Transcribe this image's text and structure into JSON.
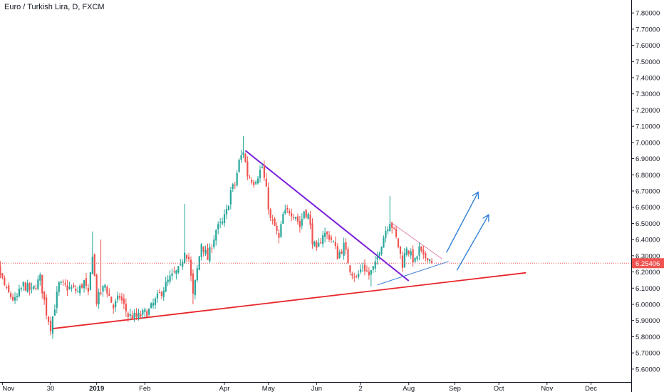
{
  "title": "Euro / Turkish Lira, D, FXCM",
  "colors": {
    "up": "#26a69a",
    "down": "#ef5350",
    "support": "#e8262b",
    "downtrend": "#7b1fd9",
    "pennant_lower": "#3b7fd4",
    "pennant_upper": "#d46aa0",
    "arrow": "#2f7fd6",
    "last_price": "#ef5350",
    "axis_text": "#131722",
    "axis_line": "#131722"
  },
  "chart_data": {
    "type": "candlestick",
    "symbol": "Euro / Turkish Lira, D, FXCM",
    "ylim": [
      5.52,
      7.88
    ],
    "y_ticks": [
      "5.60000",
      "5.70000",
      "5.80000",
      "5.90000",
      "6.00000",
      "6.10000",
      "6.20000",
      "6.30000",
      "6.40000",
      "6.50000",
      "6.60000",
      "6.70000",
      "6.80000",
      "6.90000",
      "7.00000",
      "7.10000",
      "7.20000",
      "7.30000",
      "7.40000",
      "7.50000",
      "7.60000",
      "7.70000",
      "7.80000"
    ],
    "x_ticks": [
      {
        "label": "Nov",
        "bar": -40,
        "bold": false
      },
      {
        "label": "30",
        "bar": -17,
        "bold": false
      },
      {
        "label": "2019",
        "bar": 5,
        "bold": true
      },
      {
        "label": "Feb",
        "bar": 28,
        "bold": false
      },
      {
        "label": "Apr",
        "bar": 66,
        "bold": false
      },
      {
        "label": "May",
        "bar": 87,
        "bold": false
      },
      {
        "label": "Jun",
        "bar": 110,
        "bold": false
      },
      {
        "label": "2",
        "bar": 131,
        "bold": false
      },
      {
        "label": "Aug",
        "bar": 154,
        "bold": false
      },
      {
        "label": "Sep",
        "bar": 176,
        "bold": false
      },
      {
        "label": "Oct",
        "bar": 197,
        "bold": false
      },
      {
        "label": "Nov",
        "bar": 220,
        "bold": false
      },
      {
        "label": "Dec",
        "bar": 241,
        "bold": false
      }
    ],
    "last_price": 6.25406,
    "last_price_label": "6.25406",
    "waypoints": [
      [
        -50,
        6.38
      ],
      [
        -46,
        6.12
      ],
      [
        -42,
        6.22
      ],
      [
        -38,
        6.08
      ],
      [
        -34,
        6.02
      ],
      [
        -30,
        6.12
      ],
      [
        -26,
        6.08
      ],
      [
        -22,
        6.16
      ],
      [
        -19,
        5.95
      ],
      [
        -17,
        5.86
      ],
      [
        -13,
        6.12
      ],
      [
        -8,
        6.1
      ],
      [
        -4,
        6.08
      ],
      [
        -1,
        6.14
      ],
      [
        1,
        6.05
      ],
      [
        3,
        6.32
      ],
      [
        5,
        6.02
      ],
      [
        9,
        6.12
      ],
      [
        13,
        5.98
      ],
      [
        16,
        6.05
      ],
      [
        20,
        5.93
      ],
      [
        24,
        5.92
      ],
      [
        30,
        5.96
      ],
      [
        35,
        6.06
      ],
      [
        40,
        6.16
      ],
      [
        45,
        6.22
      ],
      [
        47,
        6.34
      ],
      [
        49,
        6.28
      ],
      [
        51,
        6.05
      ],
      [
        55,
        6.38
      ],
      [
        58,
        6.28
      ],
      [
        62,
        6.46
      ],
      [
        65,
        6.5
      ],
      [
        67,
        6.57
      ],
      [
        69,
        6.7
      ],
      [
        71,
        6.74
      ],
      [
        73,
        6.88
      ],
      [
        75,
        6.95
      ],
      [
        77,
        6.8
      ],
      [
        80,
        6.76
      ],
      [
        82,
        6.8
      ],
      [
        84,
        6.85
      ],
      [
        86,
        6.7
      ],
      [
        88,
        6.52
      ],
      [
        90,
        6.48
      ],
      [
        92,
        6.4
      ],
      [
        94,
        6.55
      ],
      [
        97,
        6.58
      ],
      [
        100,
        6.55
      ],
      [
        102,
        6.48
      ],
      [
        104,
        6.58
      ],
      [
        106,
        6.55
      ],
      [
        108,
        6.4
      ],
      [
        110,
        6.32
      ],
      [
        113,
        6.44
      ],
      [
        116,
        6.42
      ],
      [
        118,
        6.38
      ],
      [
        120,
        6.3
      ],
      [
        123,
        6.36
      ],
      [
        126,
        6.22
      ],
      [
        129,
        6.16
      ],
      [
        132,
        6.24
      ],
      [
        135,
        6.18
      ],
      [
        138,
        6.24
      ],
      [
        140,
        6.34
      ],
      [
        143,
        6.46
      ],
      [
        145,
        6.52
      ],
      [
        147,
        6.45
      ],
      [
        149,
        6.36
      ],
      [
        151,
        6.25
      ],
      [
        153,
        6.36
      ],
      [
        155,
        6.3
      ],
      [
        157,
        6.26
      ],
      [
        159,
        6.34
      ],
      [
        161,
        6.28
      ],
      [
        163,
        6.3
      ],
      [
        165,
        6.25406
      ]
    ],
    "spikes": [
      {
        "bar": -43,
        "high": 6.43
      },
      {
        "bar": 3,
        "high": 6.45
      },
      {
        "bar": 7,
        "high": 6.4
      },
      {
        "bar": 47,
        "high": 6.62
      },
      {
        "bar": 75,
        "high": 7.04
      },
      {
        "bar": 145,
        "high": 6.67
      },
      {
        "bar": -17,
        "low": 5.85
      },
      {
        "bar": 51,
        "low": 6.0
      },
      {
        "bar": 136,
        "low": 6.11
      }
    ],
    "trendlines": [
      {
        "name": "support",
        "color_key": "support",
        "width": 1.8,
        "from": [
          -16,
          5.85
        ],
        "to": [
          210,
          6.195
        ]
      },
      {
        "name": "downtrend",
        "color_key": "downtrend",
        "width": 2,
        "from": [
          76,
          6.95
        ],
        "to": [
          154,
          6.145
        ]
      },
      {
        "name": "pennant_lower",
        "color_key": "pennant_lower",
        "width": 1,
        "from": [
          139,
          6.12
        ],
        "to": [
          173,
          6.265
        ]
      },
      {
        "name": "pennant_upper",
        "color_key": "pennant_upper",
        "width": 0.8,
        "from": [
          145,
          6.51
        ],
        "to": [
          170,
          6.28
        ]
      }
    ],
    "arrows": [
      {
        "from": [
          172,
          6.32
        ],
        "to": [
          187,
          6.69
        ]
      },
      {
        "from": [
          177,
          6.21
        ],
        "to": [
          192,
          6.55
        ]
      }
    ]
  }
}
